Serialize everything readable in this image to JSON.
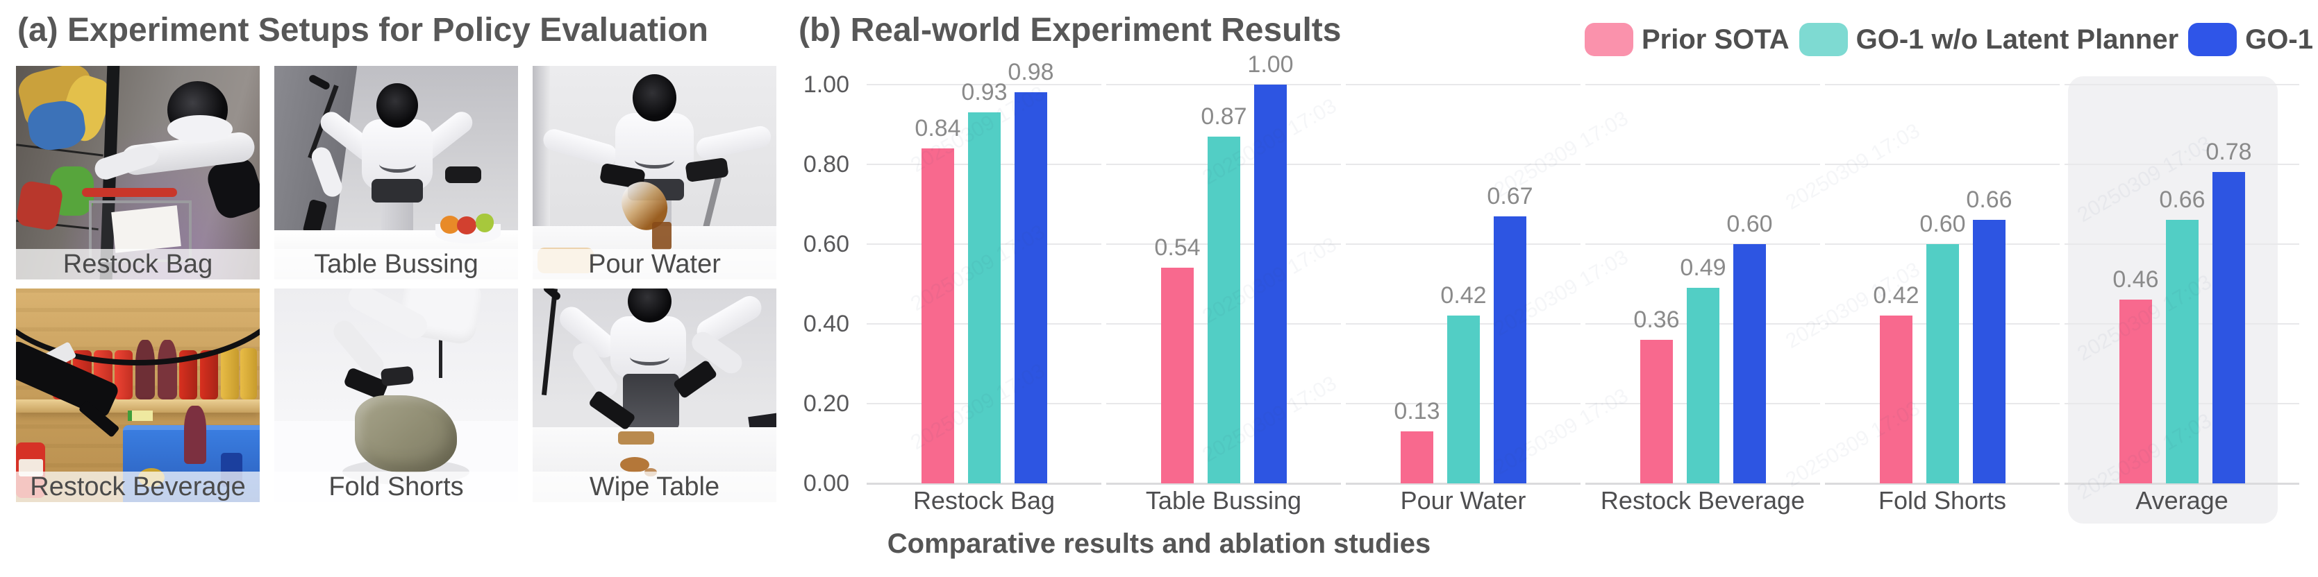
{
  "figure": {
    "panel_a": {
      "title": "(a) Experiment Setups for Policy Evaluation",
      "photos": [
        {
          "label": "Restock Bag"
        },
        {
          "label": "Table Bussing"
        },
        {
          "label": "Pour Water"
        },
        {
          "label": "Restock Beverage"
        },
        {
          "label": "Fold Shorts"
        },
        {
          "label": "Wipe Table"
        }
      ]
    },
    "panel_b": {
      "title": "(b) Real-world Experiment Results",
      "caption": "Comparative results and ablation studies",
      "watermark_text": "20250309 17:03"
    }
  },
  "chart_data": {
    "type": "bar",
    "title": "(b) Real-world Experiment Results",
    "categories": [
      "Restock Bag",
      "Table Bussing",
      "Pour Water",
      "Restock Beverage",
      "Fold Shorts",
      "Average"
    ],
    "series": [
      {
        "name": "Prior SOTA",
        "color": "#F8698E",
        "legend_color": "#FA92AC",
        "values": [
          0.84,
          0.54,
          0.13,
          0.36,
          0.42,
          0.46
        ]
      },
      {
        "name": "GO-1 w/o Latent Planner",
        "color": "#52CEC5",
        "legend_color": "#7EDAD2",
        "values": [
          0.93,
          0.87,
          0.42,
          0.49,
          0.6,
          0.66
        ]
      },
      {
        "name": "GO-1",
        "color": "#2D55E2",
        "legend_color": "#2F55E8",
        "values": [
          0.98,
          1.0,
          0.67,
          0.6,
          0.66,
          0.78
        ]
      }
    ],
    "ylim": [
      0,
      1.0
    ],
    "yticks": [
      "1.00",
      "0.80",
      "0.60",
      "0.40",
      "0.20",
      "0.00"
    ],
    "grid": true,
    "grid_style": "per-category segments",
    "legend_position": "top-right",
    "highlighted_category": "Average",
    "value_label_format": "0.00"
  }
}
